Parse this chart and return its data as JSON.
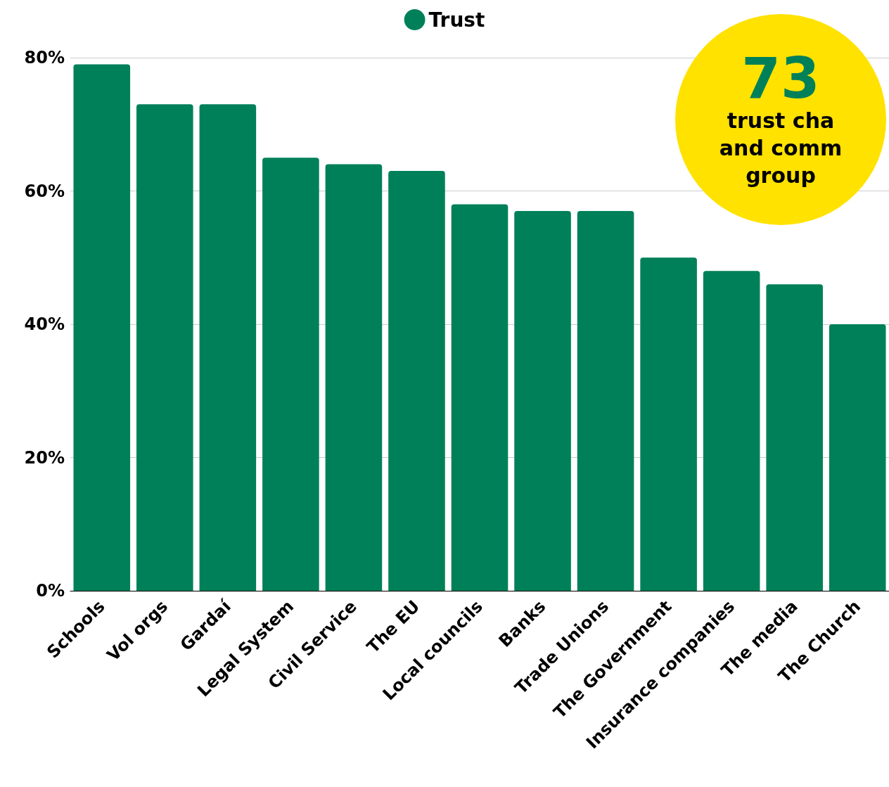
{
  "chart_data": {
    "type": "bar",
    "categories": [
      "Schools",
      "Vol orgs",
      "Gardaí",
      "Legal System",
      "Civil Service",
      "The EU",
      "Local councils",
      "Banks",
      "Trade Unions",
      "The Government",
      "Insurance companies",
      "The media",
      "The Church"
    ],
    "series": [
      {
        "name": "Trust",
        "color": "#008059",
        "values": [
          79,
          73,
          73,
          65,
          64,
          63,
          58,
          57,
          57,
          50,
          48,
          46,
          40
        ]
      }
    ],
    "ylim": [
      0,
      80
    ],
    "yticks": [
      {
        "value": 0,
        "label": "0%"
      },
      {
        "value": 20,
        "label": "20%"
      },
      {
        "value": 40,
        "label": "40%"
      },
      {
        "value": 60,
        "label": "60%"
      },
      {
        "value": 80,
        "label": "80%"
      }
    ],
    "grid": "y",
    "legend": "top",
    "marker": "circle",
    "annotations": [
      "73",
      "trust cha",
      "and comm",
      "group"
    ]
  }
}
